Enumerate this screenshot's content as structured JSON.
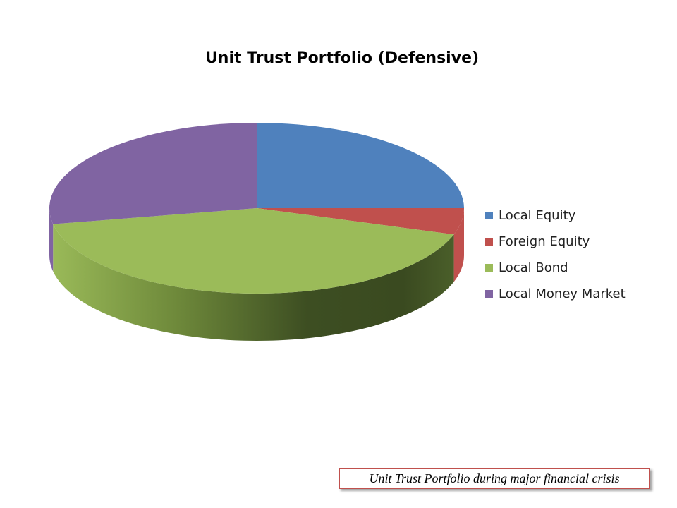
{
  "chart_data": {
    "type": "pie",
    "title": "Unit Trust Portfolio (Defensive)",
    "categories": [
      "Local Equity",
      "Foreign Equity",
      "Local Bond",
      "Local Money Market"
    ],
    "values": [
      25,
      5,
      42,
      28
    ],
    "colors": [
      "#4f81bd",
      "#c0504d",
      "#9bbb59",
      "#8064a2"
    ],
    "legend_position": "right",
    "three_d": true
  },
  "caption": {
    "text": "Unit Trust Portfolio during major financial crisis"
  }
}
